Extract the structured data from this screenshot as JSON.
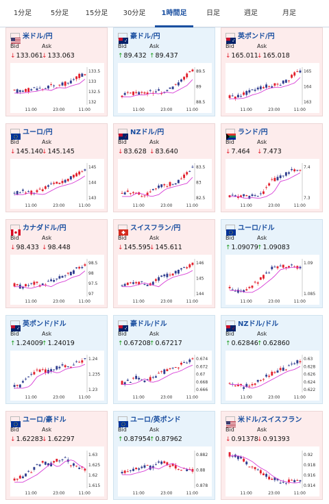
{
  "tabs": [
    {
      "label": "1分足",
      "active": false
    },
    {
      "label": "5分足",
      "active": false
    },
    {
      "label": "15分足",
      "active": false
    },
    {
      "label": "30分足",
      "active": false
    },
    {
      "label": "1時間足",
      "active": true
    },
    {
      "label": "日足",
      "active": false
    },
    {
      "label": "週足",
      "active": false
    },
    {
      "label": "月足",
      "active": false
    }
  ],
  "labels": {
    "bid": "Bid",
    "ask": "Ask"
  },
  "colors": {
    "up_candle": "#e2202d",
    "down_candle": "#2f3d8f",
    "ma_line": "#d73cd6",
    "arrow_down": "#e2202d",
    "arrow_up": "#1a9b1a",
    "card_down_bg": "#fdecec",
    "card_up_bg": "#e8f3fb",
    "title": "#1a4fa0"
  },
  "pairs": [
    {
      "name": "米ドル/円",
      "flag": "us-flag",
      "direction": "down",
      "bid": "133.061",
      "ask": "133.063",
      "yticks": [
        "133.5",
        "133",
        "132.5",
        "132"
      ],
      "xticks": [
        "11:00",
        "23:00",
        "11:00"
      ]
    },
    {
      "name": "豪ドル/円",
      "flag": "au-flag",
      "direction": "up",
      "bid": "89.432",
      "ask": "89.437",
      "yticks": [
        "89.5",
        "89",
        "88.5"
      ],
      "xticks": [
        "11:00",
        "23:00",
        "11:00"
      ]
    },
    {
      "name": "英ポンド/円",
      "flag": "gb-flag",
      "direction": "down",
      "bid": "165.011",
      "ask": "165.018",
      "yticks": [
        "165",
        "164",
        "163"
      ],
      "xticks": [
        "11:00",
        "23:00",
        "11:00"
      ]
    },
    {
      "name": "ユーロ/円",
      "flag": "eu-flag",
      "direction": "down",
      "bid": "145.140",
      "ask": "145.145",
      "yticks": [
        "145",
        "144",
        "143"
      ],
      "xticks": [
        "11:00",
        "23:00",
        "11:00"
      ]
    },
    {
      "name": "NZドル/円",
      "flag": "nz-flag",
      "direction": "down",
      "bid": "83.628",
      "ask": "83.640",
      "yticks": [
        "83.5",
        "83",
        "82.5"
      ],
      "xticks": [
        "11:00",
        "23:00",
        "11:00"
      ]
    },
    {
      "name": "ランド/円",
      "flag": "za-flag",
      "direction": "down",
      "bid": "7.464",
      "ask": "7.473",
      "yticks": [
        "7.4",
        "7.3"
      ],
      "xticks": [
        "11:00",
        "23:00",
        "11:00"
      ]
    },
    {
      "name": "カナダドル/円",
      "flag": "ca-flag",
      "direction": "down",
      "bid": "98.433",
      "ask": "98.448",
      "yticks": [
        "98.5",
        "98",
        "97.5",
        "97"
      ],
      "xticks": [
        "11:00",
        "23:00",
        "11:00"
      ]
    },
    {
      "name": "スイスフラン/円",
      "flag": "ch-flag",
      "direction": "down",
      "bid": "145.595",
      "ask": "145.611",
      "yticks": [
        "146",
        "145",
        "144"
      ],
      "xticks": [
        "11:00",
        "23:00",
        "11:00"
      ]
    },
    {
      "name": "ユーロ/ドル",
      "flag": "eu-us-flag",
      "direction": "up",
      "bid": "1.09079",
      "ask": "1.09083",
      "yticks": [
        "1.09",
        "1.085"
      ],
      "xticks": [
        "11:00",
        "23:00",
        "11:00"
      ]
    },
    {
      "name": "英ポンド/ドル",
      "flag": "gb-us-flag",
      "direction": "up",
      "bid": "1.24009",
      "ask": "1.24019",
      "yticks": [
        "1.24",
        "1.235",
        "1.23"
      ],
      "xticks": [
        "11:00",
        "23:00",
        "11:00"
      ]
    },
    {
      "name": "豪ドル/ドル",
      "flag": "au-us-flag",
      "direction": "up",
      "bid": "0.67208",
      "ask": "0.67217",
      "yticks": [
        "0.674",
        "0.672",
        "0.67",
        "0.668",
        "0.666"
      ],
      "xticks": [
        "11:00",
        "23:00",
        "11:00"
      ]
    },
    {
      "name": "NZドル/ドル",
      "flag": "nz-us-flag",
      "direction": "up",
      "bid": "0.62846",
      "ask": "0.62860",
      "yticks": [
        "0.63",
        "0.628",
        "0.626",
        "0.624",
        "0.622"
      ],
      "xticks": [
        "11:00",
        "23:00",
        "11:00"
      ]
    },
    {
      "name": "ユーロ/豪ドル",
      "flag": "eu-au-flag",
      "direction": "down",
      "bid": "1.62283",
      "ask": "1.62297",
      "yticks": [
        "1.63",
        "1.625",
        "1.62",
        "1.615"
      ],
      "xticks": [
        "11:00",
        "23:00",
        "11:00"
      ]
    },
    {
      "name": "ユーロ/英ポンド",
      "flag": "eu-gb-flag",
      "direction": "up",
      "bid": "0.87954",
      "ask": "0.87962",
      "yticks": [
        "0.882",
        "0.88",
        "0.878"
      ],
      "xticks": [
        "11:00",
        "23:00",
        "11:00"
      ]
    },
    {
      "name": "米ドル/スイスフラン",
      "flag": "us-ch-flag",
      "direction": "down",
      "bid": "0.91378",
      "ask": "0.91393",
      "yticks": [
        "0.92",
        "0.918",
        "0.916",
        "0.914"
      ],
      "xticks": [
        "11:00",
        "23:00",
        "11:00"
      ]
    }
  ]
}
